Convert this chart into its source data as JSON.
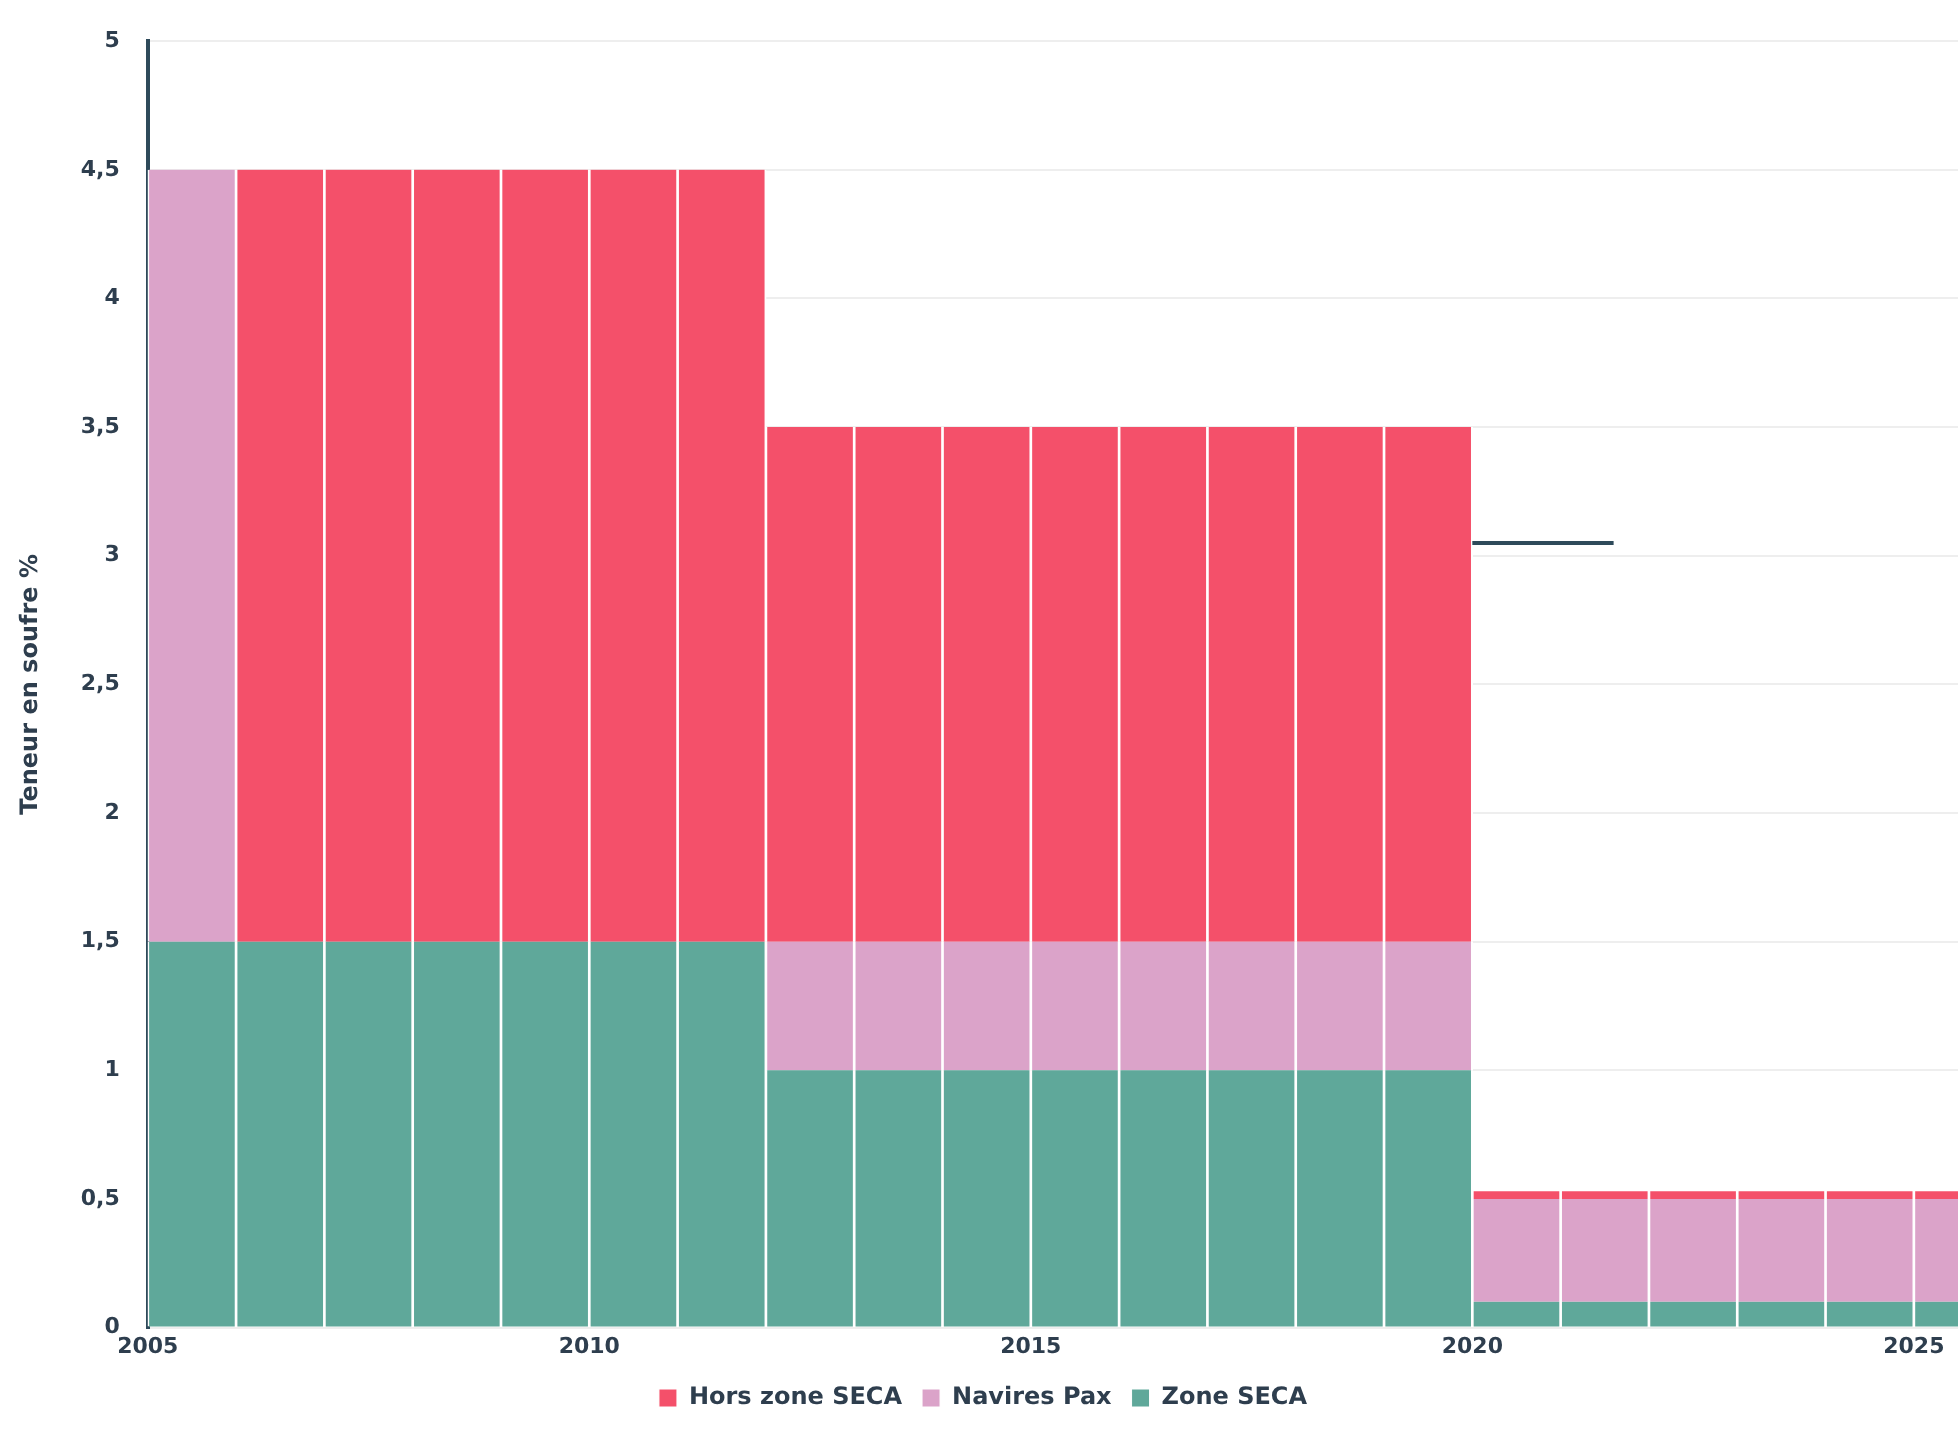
{
  "chart_data": {
    "type": "bar",
    "stacked": true,
    "ylabel": "Teneur en soufre %",
    "x": [
      2005.5,
      2006.5,
      2007.5,
      2008.5,
      2009.5,
      2010.5,
      2011.5,
      2012.5,
      2013.5,
      2014.5,
      2015.5,
      2016.5,
      2017.5,
      2018.5,
      2019.5,
      2020.5,
      2021.5,
      2022.5,
      2023.5,
      2024.5,
      2025.5
    ],
    "series": [
      {
        "name": "Zone SECA",
        "color": "#5fa89a",
        "values": [
          1.5,
          1.5,
          1.5,
          1.5,
          1.5,
          1.5,
          1.5,
          1,
          1,
          1,
          1,
          1,
          1,
          1,
          1,
          0.1,
          0.1,
          0.1,
          0.1,
          0.1,
          0.1
        ]
      },
      {
        "name": "Navires Pax",
        "color": "#dba3c9",
        "values": [
          3,
          0,
          0,
          0,
          0,
          0,
          0,
          0.5,
          0.5,
          0.5,
          0.5,
          0.5,
          0.5,
          0.5,
          0.5,
          0.4,
          0.4,
          0.4,
          0.4,
          0.4,
          0.4
        ]
      },
      {
        "name": "Hors zone SECA",
        "color": "#f4506a",
        "values": [
          0,
          3,
          3,
          3,
          3,
          3,
          3,
          2,
          2,
          2,
          2,
          2,
          2,
          2,
          2,
          0.03,
          0.03,
          0.03,
          0.03,
          0.03,
          0.03
        ]
      },
      {
        "type": "line",
        "color": "#2e4a5a",
        "x": [
          2020,
          2021.6
        ],
        "values": [
          3.05,
          3.05
        ]
      }
    ],
    "xlim": [
      2005,
      2025.5
    ],
    "xticks": [
      2005,
      2010,
      2015,
      2020,
      2025
    ],
    "ylim": [
      0,
      5
    ],
    "yticks": [
      0,
      {
        "value": 0.5,
        "label": "0,5"
      },
      1,
      {
        "value": 1.5,
        "label": "1,5"
      },
      2,
      {
        "value": 2.5,
        "label": "2,5"
      },
      3,
      {
        "value": 3.5,
        "label": "3,5"
      },
      4,
      {
        "value": 4.5,
        "label": "4,5"
      },
      5
    ],
    "grid": "y",
    "legend": "bottom"
  }
}
